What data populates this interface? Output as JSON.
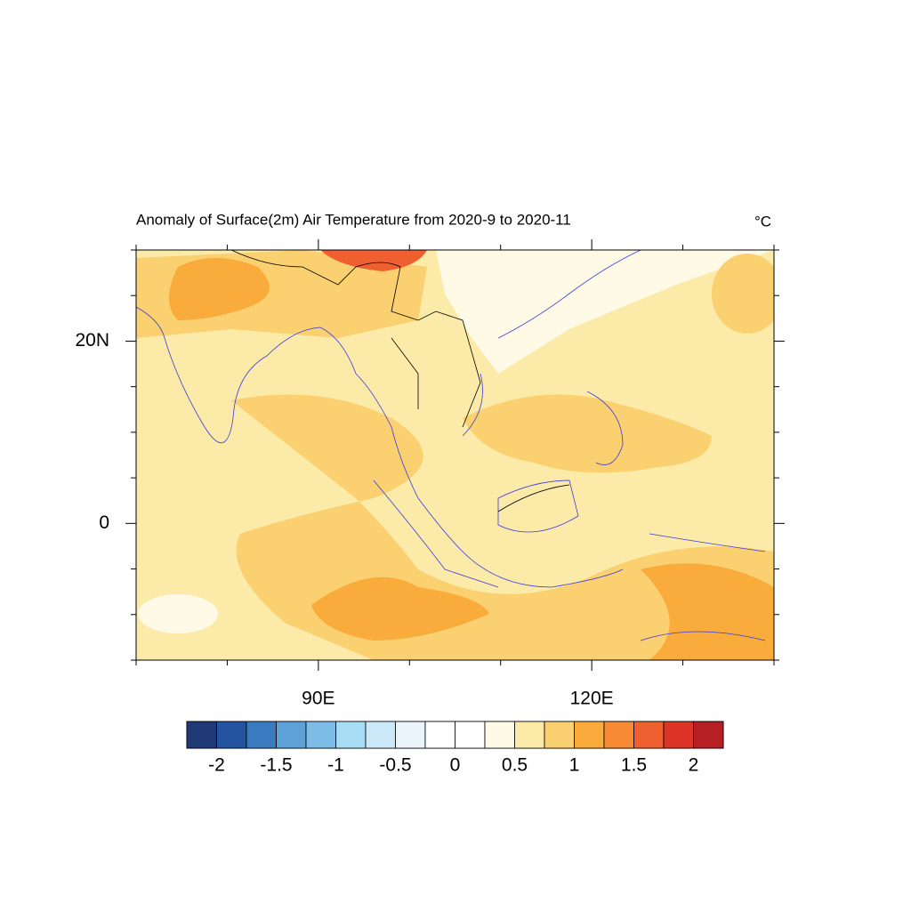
{
  "title": "Anomaly of Surface(2m) Air Temperature from 2020-9 to 2020-11",
  "units": "°C",
  "map": {
    "xlim": [
      70,
      140
    ],
    "ylim": [
      -15,
      30
    ],
    "xticks": [
      {
        "value": 90,
        "label": "90E"
      },
      {
        "value": 120,
        "label": "120E"
      }
    ],
    "yticks": [
      {
        "value": 20,
        "label": "20N"
      },
      0
    ],
    "xminorticks": [
      70,
      80,
      100,
      110,
      130,
      140
    ],
    "yminorticks": [
      -15,
      -10,
      -5,
      5,
      10,
      15,
      25,
      30
    ]
  },
  "colorbar": {
    "lim": [
      -2.25,
      2.25
    ],
    "levels": [
      -2,
      -1.5,
      -1,
      -0.5,
      0,
      0.5,
      1,
      1.5,
      2
    ],
    "colors": [
      "#203a78",
      "#2453a0",
      "#3a7bbf",
      "#5da1d6",
      "#7cbce6",
      "#a8dcf5",
      "#cae8f7",
      "#e9f5fb",
      "#ffffff",
      "#ffffff",
      "#fffae6",
      "#fbeaa8",
      "#fad070",
      "#f9ab3c",
      "#f78a32",
      "#ef6030",
      "#dd3428",
      "#b61f24"
    ]
  }
}
